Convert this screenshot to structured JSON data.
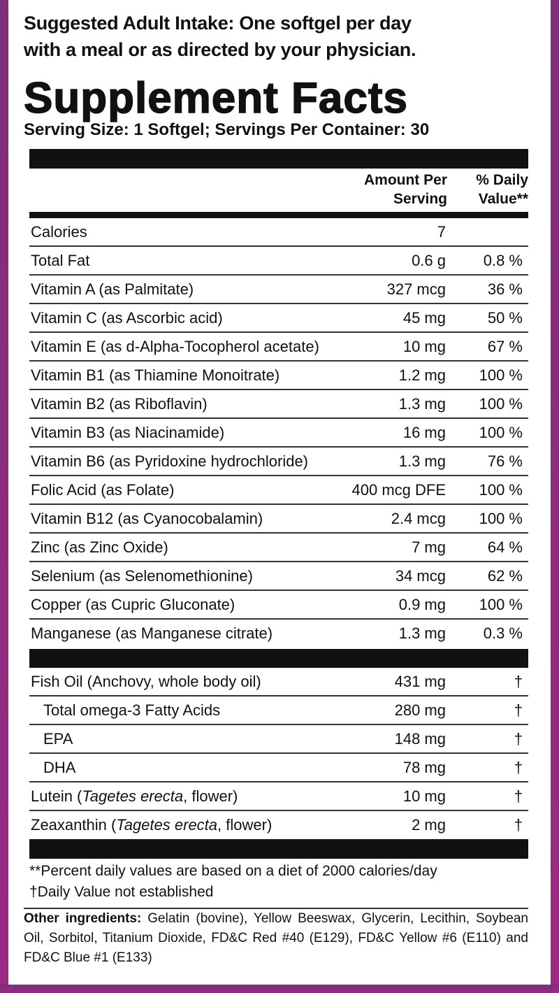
{
  "intake": [
    "Suggested Adult Intake: One softgel per day",
    "with a meal or as directed by your physician."
  ],
  "title": "Supplement Facts",
  "serving": "Serving Size: 1 Softgel; Servings Per Container: 30",
  "header": {
    "amount": [
      "Amount Per",
      "Serving"
    ],
    "daily_value": [
      "% Daily",
      "Value**"
    ]
  },
  "rows": [
    {
      "name": "Calories",
      "amount": "7",
      "dv": ""
    },
    {
      "name": "Total Fat",
      "amount": "0.6 g",
      "dv": "0.8 %"
    },
    {
      "name": "Vitamin A (as Palmitate)",
      "amount": "327 mcg",
      "dv": "36 %"
    },
    {
      "name": "Vitamin C (as Ascorbic acid)",
      "amount": "45 mg",
      "dv": "50 %"
    },
    {
      "name": "Vitamin E (as d-Alpha-Tocopherol acetate)",
      "amount": "10 mg",
      "dv": "67 %"
    },
    {
      "name": "Vitamin B1 (as Thiamine Monoitrate)",
      "amount": "1.2 mg",
      "dv": "100 %"
    },
    {
      "name": "Vitamin B2 (as Riboflavin)",
      "amount": "1.3 mg",
      "dv": "100 %"
    },
    {
      "name": "Vitamin B3 (as Niacinamide)",
      "amount": "16 mg",
      "dv": "100 %"
    },
    {
      "name": "Vitamin B6 (as Pyridoxine hydrochloride)",
      "amount": "1.3 mg",
      "dv": "76 %"
    },
    {
      "name": "Folic Acid (as Folate)",
      "amount": "400 mcg DFE",
      "dv": "100 %"
    },
    {
      "name": "Vitamin B12 (as Cyanocobalamin)",
      "amount": "2.4 mcg",
      "dv": "100 %"
    },
    {
      "name": "Zinc (as Zinc Oxide)",
      "amount": "7 mg",
      "dv": "64 %"
    },
    {
      "name": "Selenium (as Selenomethionine)",
      "amount": "34 mcg",
      "dv": "62 %"
    },
    {
      "name": "Copper (as Cupric Gluconate)",
      "amount": "0.9 mg",
      "dv": "100 %"
    },
    {
      "name": "Manganese (as Manganese citrate)",
      "amount": "1.3 mg",
      "dv": "0.3 %"
    }
  ],
  "other_rows": [
    {
      "name": "Fish Oil (Anchovy, whole body oil)",
      "amount": "431 mg",
      "dv": "†",
      "sub_items": [
        {
          "name": "Total omega-3 Fatty Acids",
          "amount": "280 mg",
          "dv": "†"
        },
        {
          "name": "EPA",
          "amount": "148 mg",
          "dv": "†"
        },
        {
          "name": "DHA",
          "amount": "78 mg",
          "dv": "†"
        }
      ]
    },
    {
      "name_parts": [
        "Lutein (",
        "Tagetes erecta",
        ", flower)"
      ],
      "amount": "10 mg",
      "dv": "†"
    },
    {
      "name_parts": [
        "Zeaxanthin (",
        "Tagetes erecta",
        ", flower)"
      ],
      "amount": "2 mg",
      "dv": "†"
    }
  ],
  "footnotes": [
    "**Percent daily values are based on a diet of 2000 calories/day",
    "†Daily Value not established"
  ],
  "other_ingredients": {
    "label": "Other ingredients:",
    "text": "Gelatin (bovine), Yellow Beeswax, Glycerin, Lecithin, Soybean Oil, Sorbitol, Titanium Dioxide, FD&C Red #40 (E129), FD&C Yellow #6 (E110) and FD&C Blue #1 (E133)"
  }
}
